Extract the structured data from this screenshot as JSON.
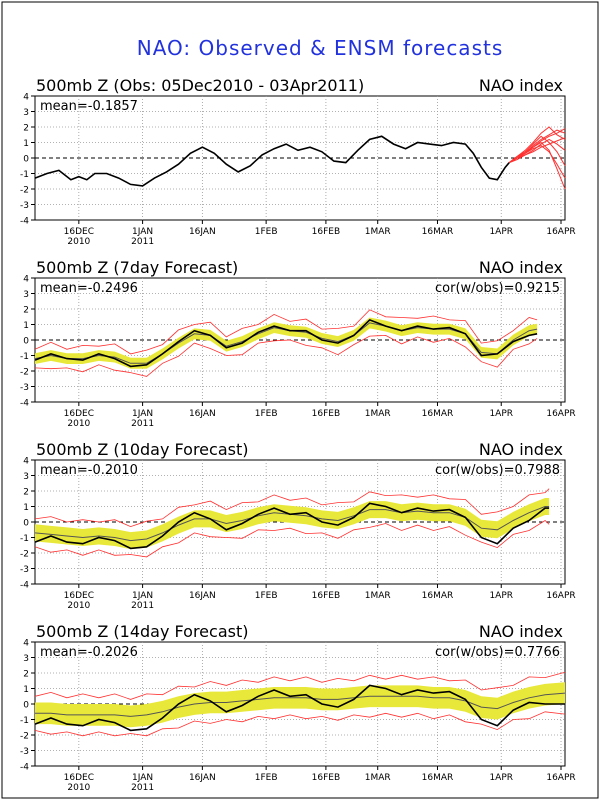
{
  "page": {
    "title": "NAO: Observed & ENSM forecasts",
    "colors": {
      "title": "#2233dd",
      "observed": "#000000",
      "ensemble_spread": "#e8e83a",
      "member": "#ff3030",
      "mean": "#555555"
    }
  },
  "chart_data": [
    {
      "type": "line",
      "title": "500mb Z (Obs: 05Dec2010 - 03Apr2011)",
      "right_title": "NAO index",
      "mean_label": "mean=-0.1857",
      "cor_label": "",
      "ylim": [
        -4,
        4
      ],
      "yticks": [
        "4",
        "3",
        "2",
        "1",
        "0",
        "-1",
        "-2",
        "-3",
        "-4"
      ],
      "xticks": [
        {
          "day": 11,
          "label": "16DEC",
          "label2": "2010"
        },
        {
          "day": 27,
          "label": "1JAN",
          "label2": "2011"
        },
        {
          "day": 42,
          "label": "16JAN",
          "label2": ""
        },
        {
          "day": 58,
          "label": "1FEB",
          "label2": ""
        },
        {
          "day": 73,
          "label": "16FEB",
          "label2": ""
        },
        {
          "day": 86,
          "label": "1MAR",
          "label2": ""
        },
        {
          "day": 101,
          "label": "16MAR",
          "label2": ""
        },
        {
          "day": 117,
          "label": "1APR",
          "label2": ""
        },
        {
          "day": 132,
          "label": "16APR",
          "label2": ""
        }
      ],
      "observed": {
        "x": [
          0,
          3,
          6,
          9,
          11,
          13,
          15,
          18,
          21,
          24,
          27,
          30,
          33,
          36,
          39,
          42,
          45,
          48,
          51,
          54,
          57,
          60,
          63,
          66,
          69,
          72,
          75,
          78,
          81,
          84,
          87,
          90,
          93,
          96,
          99,
          102,
          105,
          108,
          110,
          112,
          114,
          116,
          118,
          119
        ],
        "y": [
          -1.3,
          -1.0,
          -0.8,
          -1.4,
          -1.2,
          -1.4,
          -1.0,
          -1.0,
          -1.3,
          -1.7,
          -1.8,
          -1.3,
          -0.9,
          -0.4,
          0.3,
          0.7,
          0.3,
          -0.4,
          -0.9,
          -0.5,
          0.2,
          0.6,
          0.9,
          0.5,
          0.7,
          0.4,
          -0.2,
          -0.3,
          0.5,
          1.2,
          1.4,
          0.9,
          0.6,
          1.0,
          0.9,
          0.8,
          1.0,
          0.9,
          0.3,
          -0.6,
          -1.3,
          -1.4,
          -0.6,
          -0.3
        ]
      },
      "members_x": [
        119,
        121,
        123,
        125,
        127,
        129,
        131,
        133
      ],
      "members": [
        [
          -0.3,
          0.0,
          0.3,
          0.8,
          1.2,
          1.5,
          1.8,
          1.6
        ],
        [
          -0.3,
          0.1,
          0.5,
          1.0,
          1.6,
          2.0,
          1.5,
          1.2
        ],
        [
          -0.3,
          -0.1,
          0.2,
          0.5,
          0.9,
          1.2,
          0.9,
          0.5
        ],
        [
          -0.3,
          0.0,
          0.4,
          0.9,
          1.4,
          1.0,
          0.4,
          -0.5
        ],
        [
          -0.3,
          0.1,
          0.3,
          0.6,
          0.8,
          0.4,
          -0.4,
          -1.3
        ],
        [
          -0.3,
          0.0,
          0.3,
          0.7,
          1.0,
          0.5,
          -0.7,
          -2.0
        ],
        [
          -0.3,
          0.0,
          0.2,
          0.4,
          0.7,
          0.9,
          1.1,
          1.3
        ],
        [
          -0.3,
          0.1,
          0.4,
          0.7,
          1.1,
          1.4,
          1.6,
          1.9
        ]
      ]
    },
    {
      "type": "line",
      "title": "500mb Z (7day Forecast)",
      "right_title": "NAO index",
      "mean_label": "mean=-0.2496",
      "cor_label": "cor(w/obs)=0.9215",
      "ylim": [
        -4,
        4
      ],
      "yticks": [
        "4",
        "3",
        "2",
        "1",
        "0",
        "-1",
        "-2",
        "-3",
        "-4"
      ],
      "xticks": [
        {
          "day": 11,
          "label": "16DEC",
          "label2": "2010"
        },
        {
          "day": 27,
          "label": "1JAN",
          "label2": "2011"
        },
        {
          "day": 42,
          "label": "16JAN",
          "label2": ""
        },
        {
          "day": 58,
          "label": "1FEB",
          "label2": ""
        },
        {
          "day": 73,
          "label": "16FEB",
          "label2": ""
        },
        {
          "day": 86,
          "label": "1MAR",
          "label2": ""
        },
        {
          "day": 101,
          "label": "16MAR",
          "label2": ""
        },
        {
          "day": 117,
          "label": "1APR",
          "label2": ""
        },
        {
          "day": 132,
          "label": "16APR",
          "label2": ""
        }
      ],
      "x": [
        0,
        4,
        8,
        12,
        16,
        20,
        24,
        28,
        32,
        36,
        40,
        44,
        48,
        52,
        56,
        60,
        64,
        68,
        72,
        76,
        80,
        84,
        88,
        92,
        96,
        100,
        104,
        108,
        112,
        116,
        120,
        124,
        126
      ],
      "observed": [
        -1.3,
        -0.9,
        -1.2,
        -1.3,
        -0.9,
        -1.2,
        -1.7,
        -1.6,
        -0.9,
        -0.1,
        0.6,
        0.3,
        -0.5,
        -0.2,
        0.5,
        0.9,
        0.6,
        0.6,
        0.0,
        -0.2,
        0.3,
        1.3,
        0.9,
        0.6,
        0.9,
        0.7,
        0.8,
        0.4,
        -1.0,
        -0.9,
        -0.1,
        0.3,
        0.4
      ],
      "mean": [
        -1.2,
        -1.0,
        -1.2,
        -1.2,
        -1.0,
        -1.1,
        -1.5,
        -1.5,
        -0.9,
        -0.2,
        0.4,
        0.3,
        -0.4,
        -0.1,
        0.4,
        0.8,
        0.6,
        0.5,
        0.1,
        -0.1,
        0.3,
        1.1,
        0.9,
        0.6,
        0.8,
        0.7,
        0.7,
        0.4,
        -0.8,
        -0.9,
        0.0,
        0.6,
        0.7
      ],
      "spread": 0.35,
      "members_offset": [
        0.7,
        -0.7
      ]
    },
    {
      "type": "line",
      "title": "500mb Z (10day Forecast)",
      "right_title": "NAO index",
      "mean_label": "mean=-0.2010",
      "cor_label": "cor(w/obs)=0.7988",
      "ylim": [
        -4,
        4
      ],
      "yticks": [
        "4",
        "3",
        "2",
        "1",
        "0",
        "-1",
        "-2",
        "-3",
        "-4"
      ],
      "xticks": [
        {
          "day": 11,
          "label": "16DEC",
          "label2": "2010"
        },
        {
          "day": 27,
          "label": "1JAN",
          "label2": "2011"
        },
        {
          "day": 42,
          "label": "16JAN",
          "label2": ""
        },
        {
          "day": 58,
          "label": "1FEB",
          "label2": ""
        },
        {
          "day": 73,
          "label": "16FEB",
          "label2": ""
        },
        {
          "day": 86,
          "label": "1MAR",
          "label2": ""
        },
        {
          "day": 101,
          "label": "16MAR",
          "label2": ""
        },
        {
          "day": 117,
          "label": "1APR",
          "label2": ""
        },
        {
          "day": 132,
          "label": "16APR",
          "label2": ""
        }
      ],
      "x": [
        0,
        4,
        8,
        12,
        16,
        20,
        24,
        28,
        32,
        36,
        40,
        44,
        48,
        52,
        56,
        60,
        64,
        68,
        72,
        76,
        80,
        84,
        88,
        92,
        96,
        100,
        104,
        108,
        112,
        116,
        120,
        124,
        128,
        129
      ],
      "observed": [
        -1.3,
        -0.9,
        -1.3,
        -1.4,
        -1.0,
        -1.2,
        -1.7,
        -1.6,
        -0.9,
        0.0,
        0.6,
        0.2,
        -0.5,
        -0.1,
        0.5,
        0.9,
        0.5,
        0.6,
        0.0,
        -0.2,
        0.3,
        1.2,
        1.0,
        0.6,
        0.9,
        0.7,
        0.8,
        0.3,
        -1.0,
        -1.4,
        -0.4,
        0.1,
        0.9,
        0.9
      ],
      "mean": [
        -0.7,
        -0.8,
        -0.9,
        -1.0,
        -0.9,
        -1.0,
        -1.2,
        -1.1,
        -0.7,
        -0.2,
        0.2,
        0.2,
        -0.1,
        0.1,
        0.4,
        0.6,
        0.5,
        0.4,
        0.2,
        0.1,
        0.4,
        0.8,
        0.8,
        0.6,
        0.7,
        0.6,
        0.6,
        0.3,
        -0.4,
        -0.5,
        0.1,
        0.6,
        1.0,
        1.0
      ],
      "spread": 0.55,
      "members_offset": [
        1.0,
        -1.0
      ]
    },
    {
      "type": "line",
      "title": "500mb Z (14day Forecast)",
      "right_title": "NAO index",
      "mean_label": "mean=-0.2026",
      "cor_label": "cor(w/obs)=0.7766",
      "ylim": [
        -4,
        4
      ],
      "yticks": [
        "4",
        "3",
        "2",
        "1",
        "0",
        "-1",
        "-2",
        "-3",
        "-4"
      ],
      "xticks": [
        {
          "day": 11,
          "label": "16DEC",
          "label2": "2010"
        },
        {
          "day": 27,
          "label": "1JAN",
          "label2": "2011"
        },
        {
          "day": 42,
          "label": "16JAN",
          "label2": ""
        },
        {
          "day": 58,
          "label": "1FEB",
          "label2": ""
        },
        {
          "day": 73,
          "label": "16FEB",
          "label2": ""
        },
        {
          "day": 86,
          "label": "1MAR",
          "label2": ""
        },
        {
          "day": 101,
          "label": "16MAR",
          "label2": ""
        },
        {
          "day": 117,
          "label": "1APR",
          "label2": ""
        },
        {
          "day": 132,
          "label": "16APR",
          "label2": ""
        }
      ],
      "x": [
        0,
        4,
        8,
        12,
        16,
        20,
        24,
        28,
        32,
        36,
        40,
        44,
        48,
        52,
        56,
        60,
        64,
        68,
        72,
        76,
        80,
        84,
        88,
        92,
        96,
        100,
        104,
        108,
        112,
        116,
        120,
        124,
        128,
        133
      ],
      "observed": [
        -1.3,
        -0.9,
        -1.3,
        -1.4,
        -1.0,
        -1.2,
        -1.7,
        -1.6,
        -0.9,
        0.0,
        0.6,
        0.2,
        -0.5,
        -0.1,
        0.5,
        0.9,
        0.5,
        0.6,
        0.0,
        -0.2,
        0.3,
        1.2,
        1.0,
        0.6,
        0.9,
        0.7,
        0.8,
        0.3,
        -1.0,
        -1.4,
        -0.4,
        0.1,
        0.0,
        0.0
      ],
      "mean": [
        -0.6,
        -0.6,
        -0.7,
        -0.7,
        -0.7,
        -0.7,
        -0.8,
        -0.7,
        -0.5,
        -0.2,
        0.0,
        0.1,
        0.1,
        0.2,
        0.3,
        0.4,
        0.4,
        0.4,
        0.3,
        0.3,
        0.4,
        0.5,
        0.5,
        0.5,
        0.5,
        0.4,
        0.4,
        0.2,
        -0.2,
        -0.3,
        0.1,
        0.4,
        0.6,
        0.7
      ],
      "spread": 0.7,
      "members_offset": [
        1.2,
        -1.2
      ]
    }
  ]
}
